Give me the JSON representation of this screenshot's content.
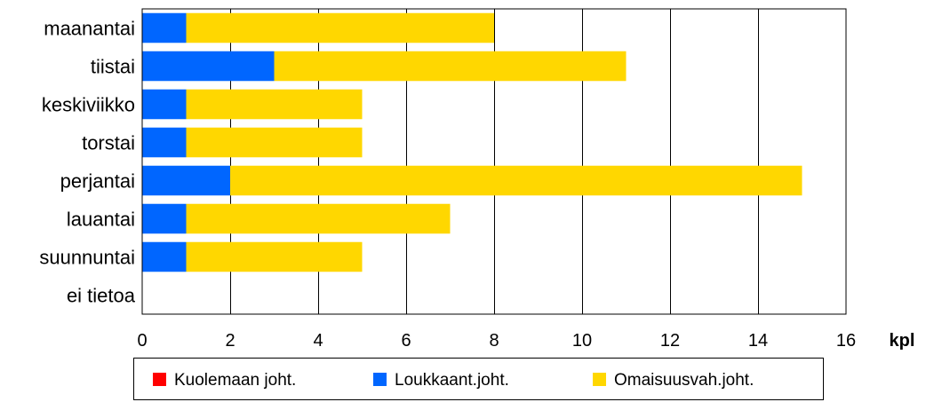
{
  "chart_data": {
    "type": "bar",
    "orientation": "horizontal",
    "stacked": true,
    "categories": [
      "maanantai",
      "tiistai",
      "keskiviikko",
      "torstai",
      "perjantai",
      "lauantai",
      "suunnuntai",
      "ei tietoa"
    ],
    "series": [
      {
        "name": "Kuolemaan joht.",
        "color": "#ff0000",
        "values": [
          0,
          0,
          0,
          0,
          0,
          0,
          0,
          0
        ]
      },
      {
        "name": "Loukkaant.joht.",
        "color": "#0066ff",
        "values": [
          1,
          3,
          1,
          1,
          2,
          1,
          1,
          0
        ]
      },
      {
        "name": "Omaisuusvah.joht.",
        "color": "#ffd700",
        "values": [
          7,
          8,
          4,
          4,
          13,
          6,
          4,
          0
        ]
      }
    ],
    "xlim": [
      0,
      16
    ],
    "xticks": [
      0,
      2,
      4,
      6,
      8,
      10,
      12,
      14,
      16
    ],
    "x_unit_label": "kpl",
    "grid": true,
    "legend_position": "bottom"
  }
}
